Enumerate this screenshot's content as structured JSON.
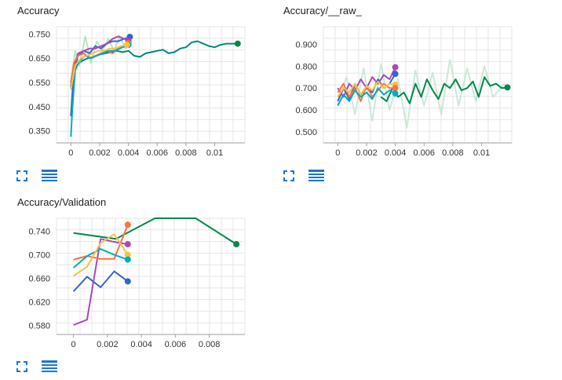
{
  "cards": [
    {
      "title": "Accuracy",
      "fullscreen_icon": "fullscreen-icon",
      "data_table_icon": "data-table-icon"
    },
    {
      "title": "Accuracy/__raw_",
      "fullscreen_icon": "fullscreen-icon",
      "data_table_icon": "data-table-icon"
    },
    {
      "title": "Accuracy/Validation",
      "fullscreen_icon": "fullscreen-icon",
      "data_table_icon": "data-table-icon"
    }
  ],
  "chart_data": [
    {
      "type": "line",
      "title": "Accuracy",
      "xlim": [
        -0.001,
        0.0121
      ],
      "ylim": [
        0.3,
        0.78
      ],
      "x_ticks": [
        "0",
        "0.002",
        "0.004",
        "0.006",
        "0.008",
        "0.01"
      ],
      "x_tick_values": [
        0,
        0.002,
        0.004,
        0.006,
        0.008,
        0.01
      ],
      "y_ticks": [
        "0.350",
        "0.450",
        "0.550",
        "0.650",
        "0.750"
      ],
      "y_tick_values": [
        0.35,
        0.45,
        0.55,
        0.65,
        0.75
      ],
      "grid": true,
      "series": [
        {
          "color": "#00897b",
          "x": [
            0,
            0.0001,
            0.0004,
            0.0008,
            0.0012,
            0.0016,
            0.002,
            0.0024,
            0.0028,
            0.0032,
            0.0036,
            0.004,
            0.0044,
            0.0048,
            0.0052,
            0.0056,
            0.006,
            0.0064,
            0.0068,
            0.0072,
            0.0076,
            0.008,
            0.0084,
            0.0088,
            0.0092,
            0.0096,
            0.01,
            0.0104,
            0.0108,
            0.0116
          ],
          "y": [
            0.53,
            0.58,
            0.62,
            0.64,
            0.65,
            0.655,
            0.665,
            0.67,
            0.675,
            0.68,
            0.675,
            0.68,
            0.66,
            0.655,
            0.67,
            0.675,
            0.68,
            0.685,
            0.67,
            0.675,
            0.69,
            0.695,
            0.715,
            0.72,
            0.71,
            0.7,
            0.695,
            0.705,
            0.71,
            0.71
          ]
        },
        {
          "color": "#a0d8a8",
          "x": [
            0,
            0.0003,
            0.0006,
            0.001,
            0.0014,
            0.0018,
            0.0022,
            0.0026,
            0.003,
            0.0034,
            0.0038,
            0.0042
          ],
          "y": [
            0.55,
            0.68,
            0.62,
            0.74,
            0.63,
            0.72,
            0.68,
            0.73,
            0.68,
            0.74,
            0.69,
            0.72
          ]
        },
        {
          "color": "#3366cc",
          "x": [
            0,
            0.0002,
            0.0005,
            0.0009,
            0.0013,
            0.0017,
            0.0021,
            0.0025,
            0.0029,
            0.0033,
            0.0037,
            0.0041
          ],
          "y": [
            0.41,
            0.6,
            0.66,
            0.68,
            0.67,
            0.7,
            0.69,
            0.71,
            0.72,
            0.72,
            0.73,
            0.738
          ]
        },
        {
          "color": "#ab47bc",
          "x": [
            0,
            0.0002,
            0.0005,
            0.0009,
            0.0013,
            0.0017,
            0.0021,
            0.0025,
            0.0029,
            0.0033,
            0.0037,
            0.004
          ],
          "y": [
            0.55,
            0.62,
            0.67,
            0.68,
            0.69,
            0.69,
            0.7,
            0.71,
            0.73,
            0.74,
            0.73,
            0.722
          ]
        },
        {
          "color": "#ff7043",
          "x": [
            0,
            0.0002,
            0.0005,
            0.0009,
            0.0013,
            0.0017,
            0.0021,
            0.0025,
            0.0029,
            0.0033,
            0.0037,
            0.004
          ],
          "y": [
            0.54,
            0.63,
            0.66,
            0.67,
            0.65,
            0.66,
            0.67,
            0.68,
            0.67,
            0.69,
            0.7,
            0.712
          ]
        },
        {
          "color": "#00acc1",
          "x": [
            0,
            0.0001,
            0.0003,
            0.0006,
            0.001,
            0.0014,
            0.0018,
            0.0022,
            0.0026,
            0.003,
            0.0034,
            0.0038,
            0.004
          ],
          "y": [
            0.325,
            0.44,
            0.6,
            0.64,
            0.66,
            0.65,
            0.66,
            0.67,
            0.68,
            0.68,
            0.69,
            0.7,
            0.705
          ]
        },
        {
          "color": "#f6c342",
          "x": [
            0,
            0.0003,
            0.0007,
            0.0011,
            0.0015,
            0.0019,
            0.0023,
            0.0027,
            0.0031,
            0.0035,
            0.0039
          ],
          "y": [
            0.52,
            0.62,
            0.65,
            0.66,
            0.67,
            0.68,
            0.68,
            0.69,
            0.69,
            0.7,
            0.705
          ]
        }
      ],
      "end_markers": [
        {
          "color": "#3366cc",
          "x": 0.0041,
          "y": 0.738
        },
        {
          "color": "#ab47bc",
          "x": 0.004,
          "y": 0.722
        },
        {
          "color": "#ff7043",
          "x": 0.004,
          "y": 0.712
        },
        {
          "color": "#00acc1",
          "x": 0.004,
          "y": 0.705
        },
        {
          "color": "#f6c342",
          "x": 0.0039,
          "y": 0.705
        },
        {
          "color": "#00894b",
          "x": 0.0116,
          "y": 0.71
        }
      ]
    },
    {
      "type": "line",
      "title": "Accuracy/__raw_",
      "xlim": [
        -0.001,
        0.0121
      ],
      "ylim": [
        0.45,
        0.98
      ],
      "x_ticks": [
        "0",
        "0.002",
        "0.004",
        "0.006",
        "0.008",
        "0.01"
      ],
      "x_tick_values": [
        0,
        0.002,
        0.004,
        0.006,
        0.008,
        0.01
      ],
      "y_ticks": [
        "0.500",
        "0.600",
        "0.700",
        "0.800",
        "0.900"
      ],
      "y_tick_values": [
        0.5,
        0.6,
        0.7,
        0.8,
        0.9
      ],
      "grid": true,
      "series": [
        {
          "color": "#b8dfc8",
          "x": [
            0,
            0.0006,
            0.0012,
            0.0018,
            0.0024,
            0.003,
            0.0036,
            0.0042,
            0.0048,
            0.0054,
            0.006,
            0.0066,
            0.0072,
            0.0078,
            0.0084,
            0.009,
            0.0096,
            0.0102,
            0.0108,
            0.0116
          ],
          "y": [
            0.62,
            0.75,
            0.58,
            0.79,
            0.55,
            0.81,
            0.6,
            0.74,
            0.52,
            0.78,
            0.62,
            0.77,
            0.58,
            0.83,
            0.62,
            0.79,
            0.64,
            0.8,
            0.66,
            0.72
          ]
        },
        {
          "color": "#00894b",
          "x": [
            0.003,
            0.0034,
            0.0038,
            0.0042,
            0.0046,
            0.005,
            0.0054,
            0.0058,
            0.0062,
            0.0066,
            0.007,
            0.0074,
            0.0078,
            0.0082,
            0.0086,
            0.009,
            0.0094,
            0.0098,
            0.0102,
            0.0106,
            0.011,
            0.0114,
            0.0118
          ],
          "y": [
            0.66,
            0.64,
            0.7,
            0.66,
            0.68,
            0.63,
            0.72,
            0.66,
            0.74,
            0.69,
            0.65,
            0.72,
            0.7,
            0.74,
            0.69,
            0.7,
            0.73,
            0.66,
            0.75,
            0.71,
            0.72,
            0.7,
            0.703
          ]
        },
        {
          "color": "#3366cc",
          "x": [
            0,
            0.0004,
            0.0008,
            0.0012,
            0.0016,
            0.002,
            0.0024,
            0.0028,
            0.0032,
            0.0036,
            0.004
          ],
          "y": [
            0.64,
            0.7,
            0.65,
            0.72,
            0.67,
            0.7,
            0.68,
            0.74,
            0.7,
            0.72,
            0.765
          ]
        },
        {
          "color": "#ab47bc",
          "x": [
            0,
            0.0004,
            0.0008,
            0.0012,
            0.0016,
            0.002,
            0.0024,
            0.0028,
            0.0032,
            0.0036,
            0.004
          ],
          "y": [
            0.7,
            0.66,
            0.72,
            0.69,
            0.74,
            0.7,
            0.75,
            0.72,
            0.76,
            0.74,
            0.795
          ]
        },
        {
          "color": "#ff7043",
          "x": [
            0,
            0.0004,
            0.0008,
            0.0012,
            0.0016,
            0.002,
            0.0024,
            0.0028,
            0.0032,
            0.0036,
            0.004
          ],
          "y": [
            0.68,
            0.72,
            0.66,
            0.7,
            0.64,
            0.71,
            0.66,
            0.69,
            0.72,
            0.7,
            0.7
          ]
        },
        {
          "color": "#00acc1",
          "x": [
            0,
            0.0004,
            0.0008,
            0.0012,
            0.0016,
            0.002,
            0.0024,
            0.0028,
            0.0032,
            0.0036,
            0.004
          ],
          "y": [
            0.62,
            0.67,
            0.64,
            0.69,
            0.66,
            0.68,
            0.65,
            0.7,
            0.67,
            0.69,
            0.675
          ]
        },
        {
          "color": "#f6c342",
          "x": [
            0,
            0.0004,
            0.0008,
            0.0012,
            0.0016,
            0.002,
            0.0024,
            0.0028,
            0.0032,
            0.0036,
            0.004
          ],
          "y": [
            0.66,
            0.7,
            0.68,
            0.72,
            0.67,
            0.71,
            0.69,
            0.73,
            0.7,
            0.72,
            0.715
          ]
        }
      ],
      "end_markers": [
        {
          "color": "#ab47bc",
          "x": 0.004,
          "y": 0.795
        },
        {
          "color": "#3366cc",
          "x": 0.004,
          "y": 0.765
        },
        {
          "color": "#f6c342",
          "x": 0.004,
          "y": 0.715
        },
        {
          "color": "#ff7043",
          "x": 0.004,
          "y": 0.7
        },
        {
          "color": "#00acc1",
          "x": 0.004,
          "y": 0.675
        },
        {
          "color": "#00894b",
          "x": 0.0118,
          "y": 0.703
        }
      ]
    },
    {
      "type": "line",
      "title": "Accuracy/Validation",
      "xlim": [
        -0.001,
        0.0101
      ],
      "ylim": [
        0.565,
        0.762
      ],
      "x_ticks": [
        "0",
        "0.002",
        "0.004",
        "0.006",
        "0.008"
      ],
      "x_tick_values": [
        0,
        0.002,
        0.004,
        0.006,
        0.008
      ],
      "y_ticks": [
        "0.580",
        "0.620",
        "0.660",
        "0.700",
        "0.740"
      ],
      "y_tick_values": [
        0.58,
        0.62,
        0.66,
        0.7,
        0.74
      ],
      "grid": true,
      "series": [
        {
          "color": "#00894b",
          "x": [
            0,
            0.0025,
            0.0048,
            0.0072,
            0.0096
          ],
          "y": [
            0.737,
            0.727,
            0.762,
            0.762,
            0.718
          ]
        },
        {
          "color": "#3366cc",
          "x": [
            0,
            0.0008,
            0.0016,
            0.0024,
            0.0032
          ],
          "y": [
            0.638,
            0.663,
            0.645,
            0.672,
            0.655
          ]
        },
        {
          "color": "#ab47bc",
          "x": [
            0,
            0.0008,
            0.0016,
            0.0024,
            0.0032
          ],
          "y": [
            0.581,
            0.59,
            0.727,
            0.722,
            0.718
          ]
        },
        {
          "color": "#ff7043",
          "x": [
            0,
            0.0008,
            0.0016,
            0.0024,
            0.0032
          ],
          "y": [
            0.692,
            0.698,
            0.693,
            0.693,
            0.751
          ]
        },
        {
          "color": "#00acc1",
          "x": [
            0,
            0.0008,
            0.0016,
            0.0024,
            0.0032
          ],
          "y": [
            0.678,
            0.698,
            0.71,
            0.7,
            0.692
          ]
        },
        {
          "color": "#f6c342",
          "x": [
            0,
            0.0008,
            0.0016,
            0.0024,
            0.0032
          ],
          "y": [
            0.664,
            0.68,
            0.72,
            0.735,
            0.7
          ]
        }
      ],
      "end_markers": [
        {
          "color": "#ff7043",
          "x": 0.0032,
          "y": 0.751
        },
        {
          "color": "#ab47bc",
          "x": 0.0032,
          "y": 0.718
        },
        {
          "color": "#f6c342",
          "x": 0.0032,
          "y": 0.7
        },
        {
          "color": "#00acc1",
          "x": 0.0032,
          "y": 0.692
        },
        {
          "color": "#3366cc",
          "x": 0.0032,
          "y": 0.655
        },
        {
          "color": "#00894b",
          "x": 0.0096,
          "y": 0.718
        }
      ]
    }
  ]
}
